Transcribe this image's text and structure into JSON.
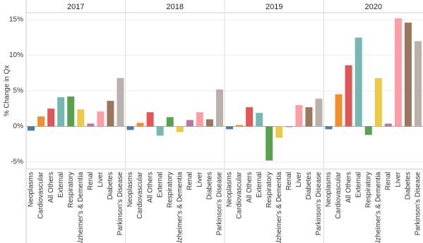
{
  "chart_data": {
    "type": "bar",
    "y_label": "% Change in Qx",
    "categories": [
      "Neoplasms",
      "Cardiovascular",
      "All Others",
      "External",
      "Respiratory",
      "Alzheimer's & Dementia",
      "Renal",
      "Liver",
      "Diabetes",
      "Parkinson's Disease"
    ],
    "colors": [
      "#4e79a7",
      "#f28e2b",
      "#e15759",
      "#76b7b2",
      "#59a14f",
      "#edc948",
      "#b07aa1",
      "#ff9da7",
      "#9c755f",
      "#bab0ac"
    ],
    "panels": [
      {
        "title": "2017",
        "values": [
          -0.6,
          1.4,
          2.5,
          4.1,
          4.2,
          2.4,
          0.4,
          2.1,
          3.6,
          6.8
        ]
      },
      {
        "title": "2018",
        "values": [
          -0.5,
          0.5,
          2.0,
          -1.3,
          1.3,
          -0.8,
          0.9,
          2.0,
          1.0,
          5.2
        ]
      },
      {
        "title": "2019",
        "values": [
          -0.4,
          0.2,
          2.7,
          1.9,
          -4.8,
          -1.6,
          -0.1,
          3.0,
          2.7,
          3.9
        ]
      },
      {
        "title": "2020",
        "values": [
          -0.4,
          4.5,
          8.6,
          12.5,
          -1.2,
          6.8,
          0.4,
          15.2,
          14.6,
          12.0
        ]
      }
    ],
    "ylim": [
      -6,
      16
    ],
    "yticks": [
      {
        "value": -5,
        "label": "-5%"
      },
      {
        "value": 0,
        "label": "0%"
      },
      {
        "value": 5,
        "label": "5%"
      },
      {
        "value": 10,
        "label": "10%"
      },
      {
        "value": 15,
        "label": "15%"
      }
    ],
    "grid": true
  }
}
